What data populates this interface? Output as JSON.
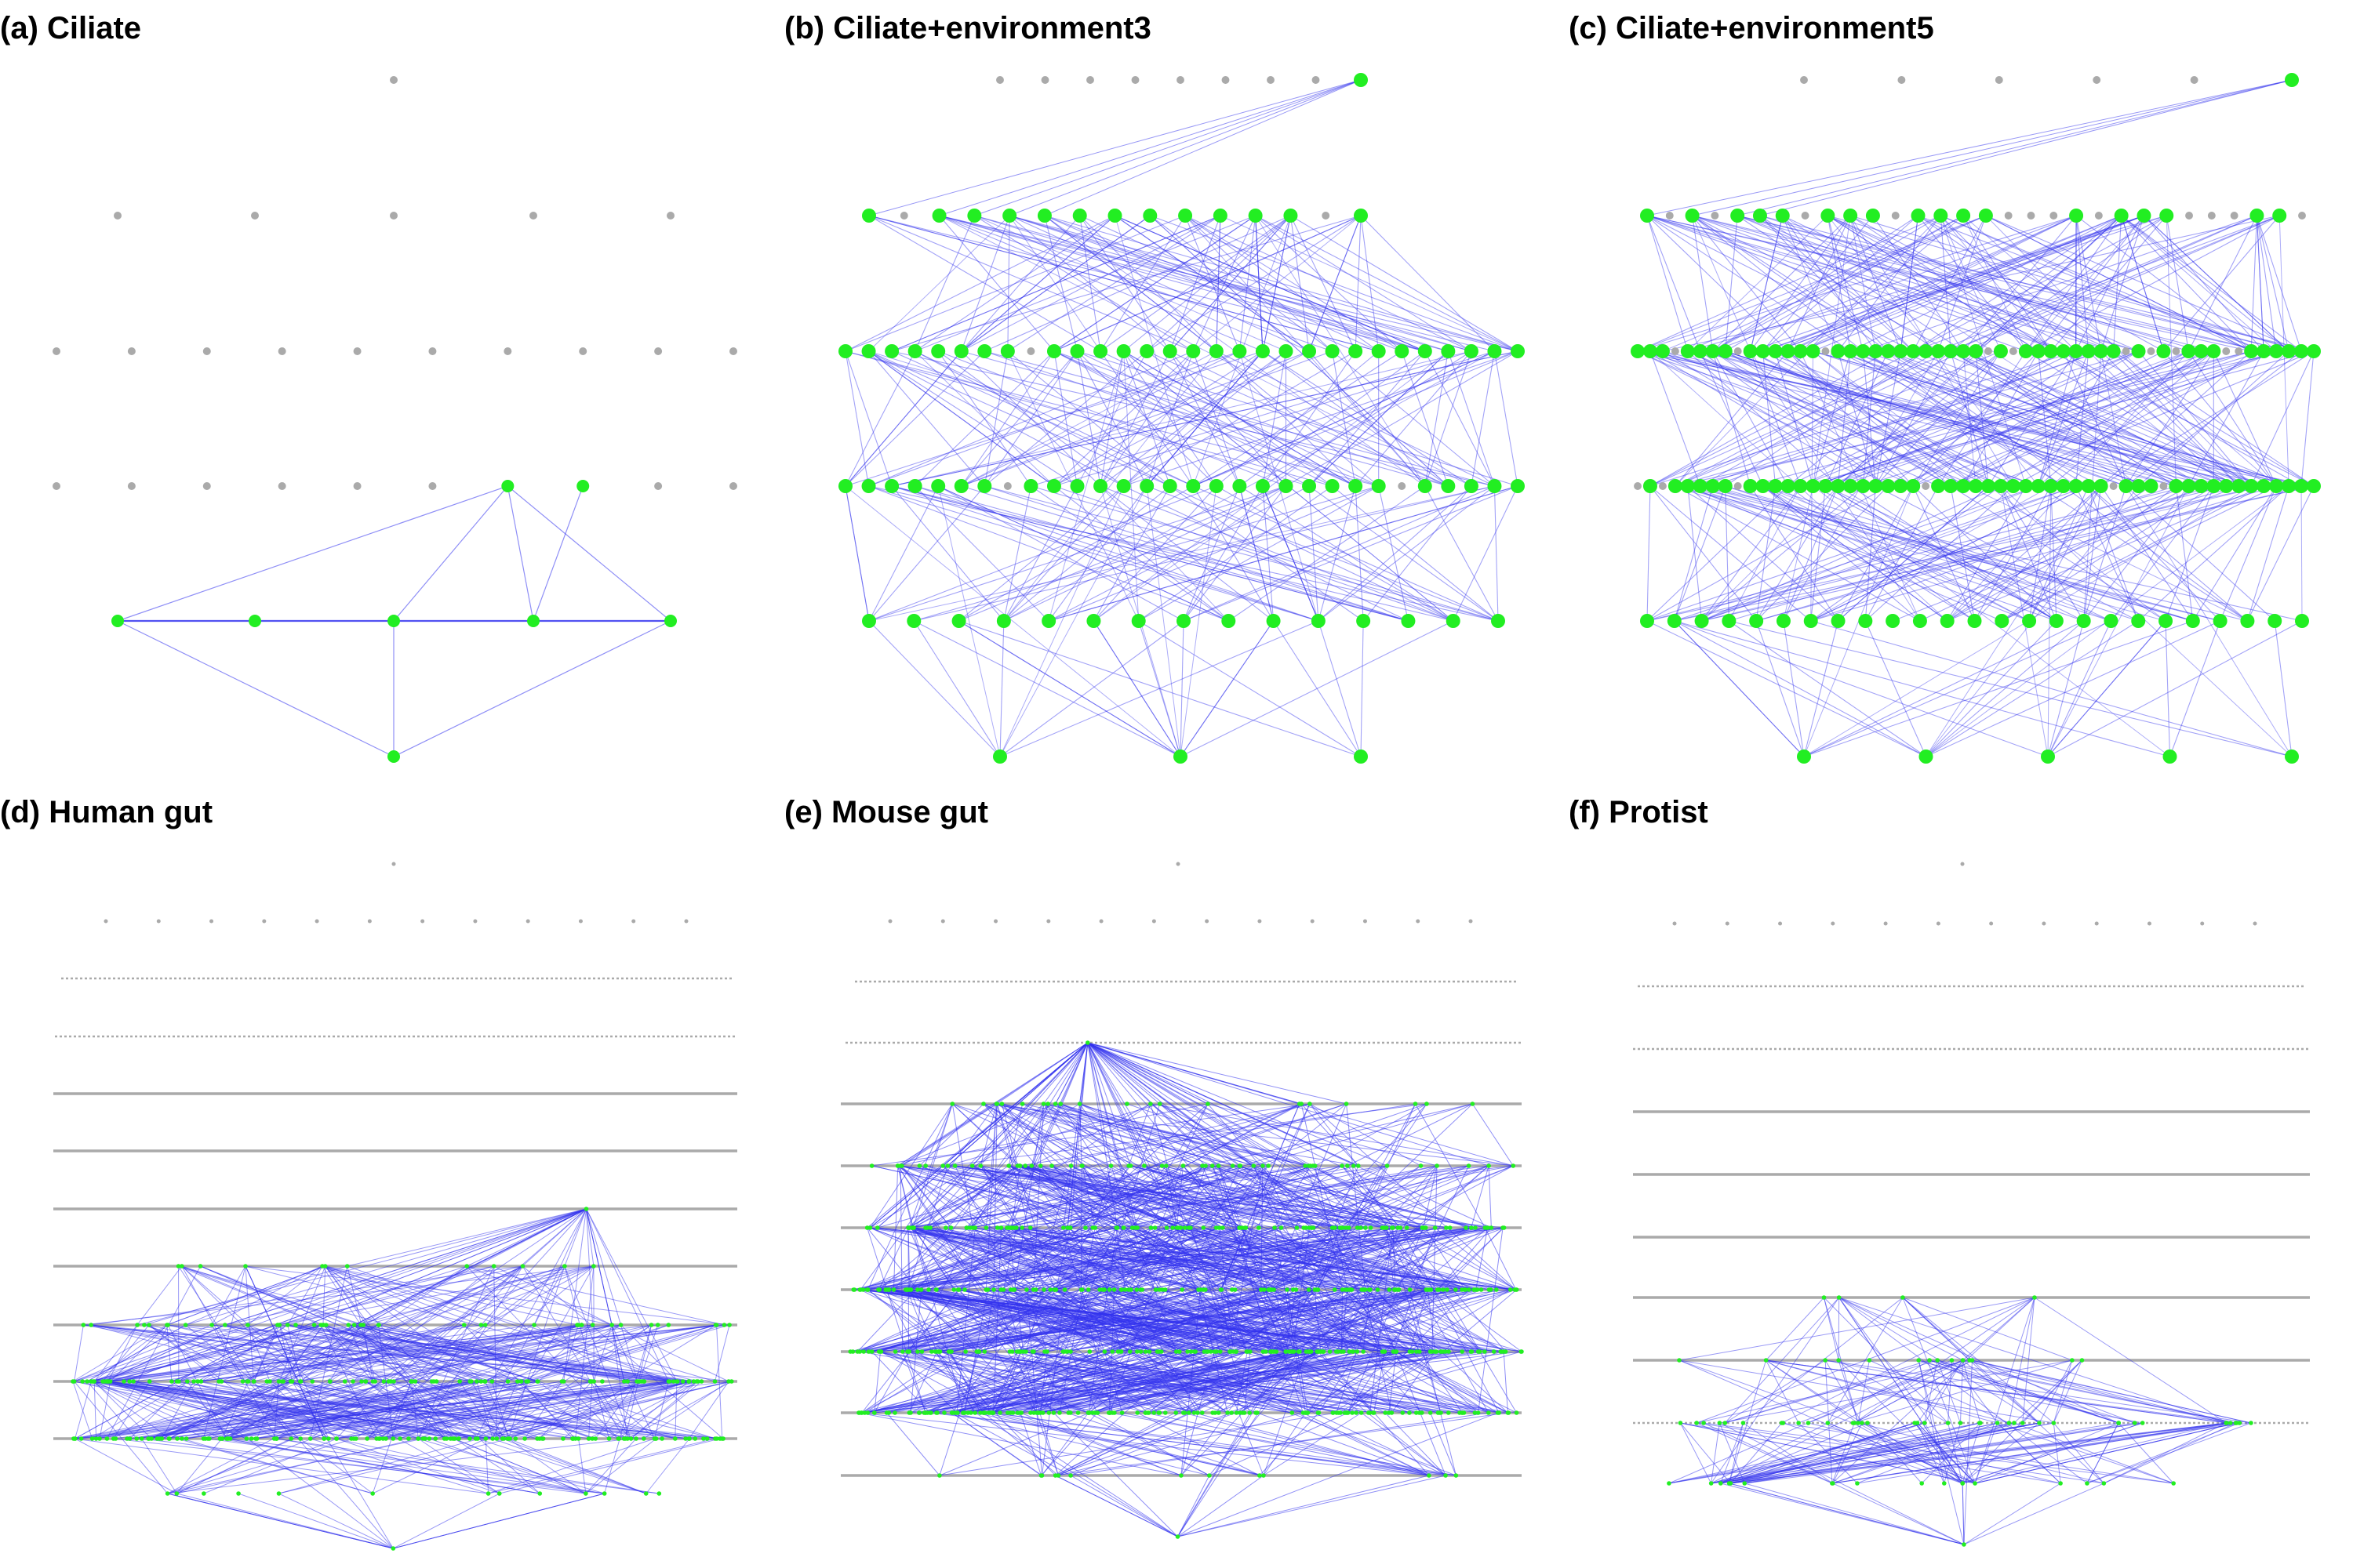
{
  "figure": {
    "panels": [
      {
        "id": "a",
        "title": "(a) Ciliate",
        "style": "big"
      },
      {
        "id": "b",
        "title": "(b) Ciliate+environment3",
        "style": "big"
      },
      {
        "id": "c",
        "title": "(c) Ciliate+environment5",
        "style": "big"
      },
      {
        "id": "d",
        "title": "(d) Human gut",
        "style": "small"
      },
      {
        "id": "e",
        "title": "(e) Mouse gut",
        "style": "small"
      },
      {
        "id": "f",
        "title": "(f) Protist",
        "style": "small"
      }
    ]
  },
  "colors": {
    "active_node": "#22ee22",
    "inactive_node": "#aaaaaa",
    "edge": "#3333ee",
    "title": "#000000"
  }
}
